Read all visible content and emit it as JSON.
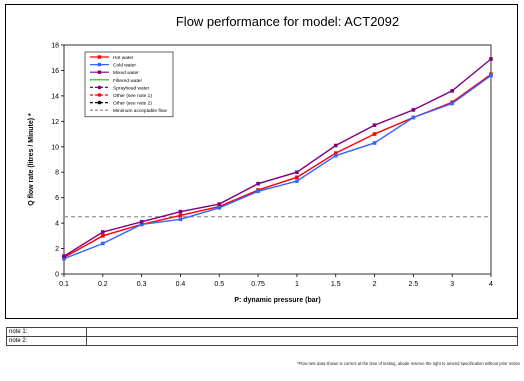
{
  "chart_data": {
    "type": "line",
    "title": "Flow performance for model: ACT2092",
    "xlabel": "P: dynamic pressure (bar)",
    "ylabel": "Q flow rate (litres / Minute) *",
    "x_categories": [
      "0.1",
      "0.2",
      "0.3",
      "0.4",
      "0.5",
      "0.75",
      "1",
      "1.5",
      "2",
      "2.5",
      "3",
      "4"
    ],
    "ylim": [
      0,
      18
    ],
    "yticks": [
      0,
      2,
      4,
      6,
      8,
      10,
      12,
      14,
      16,
      18
    ],
    "grid": false,
    "legend_placement": "top-left",
    "series": [
      {
        "name": "Hot water",
        "color": "#ff0000",
        "marker": "square",
        "dash": "solid",
        "values": [
          1.3,
          3.0,
          3.9,
          4.6,
          5.3,
          6.6,
          7.6,
          9.5,
          11.0,
          12.3,
          13.5,
          15.7
        ]
      },
      {
        "name": "Cold water",
        "color": "#3366ff",
        "marker": "square",
        "dash": "solid",
        "values": [
          1.2,
          2.4,
          3.9,
          4.3,
          5.2,
          6.5,
          7.3,
          9.3,
          10.3,
          12.3,
          13.4,
          15.6
        ]
      },
      {
        "name": "Mixed water",
        "color": "#800080",
        "marker": "square",
        "dash": "solid",
        "values": [
          1.4,
          3.3,
          4.1,
          4.9,
          5.5,
          7.1,
          8.0,
          10.1,
          11.7,
          12.9,
          14.4,
          16.9
        ]
      },
      {
        "name": "Filtered water",
        "color": "#00cc00",
        "marker": "none",
        "dash": "solid",
        "values": []
      },
      {
        "name": "Sprayhead water",
        "color": "#800080",
        "marker": "circle",
        "dash": "dash",
        "values": []
      },
      {
        "name": "Other (see note 1)",
        "color": "#ff0000",
        "marker": "circle",
        "dash": "dash",
        "values": []
      },
      {
        "name": "Other (see note 2)",
        "color": "#000000",
        "marker": "circle",
        "dash": "dash",
        "values": []
      },
      {
        "name": "Minimum acceptable flow",
        "color": "#808080",
        "marker": "none",
        "dash": "dash",
        "values": []
      }
    ],
    "reference_lines": [
      {
        "series": "Minimum acceptable flow",
        "y": 4.5
      }
    ]
  },
  "notes": [
    {
      "label": "note 1:",
      "value": ""
    },
    {
      "label": "note 2:",
      "value": ""
    }
  ],
  "footnote": "*Flow rate data shown is correct at the time of testing, abode reserve the right to amend specification without prior notice"
}
